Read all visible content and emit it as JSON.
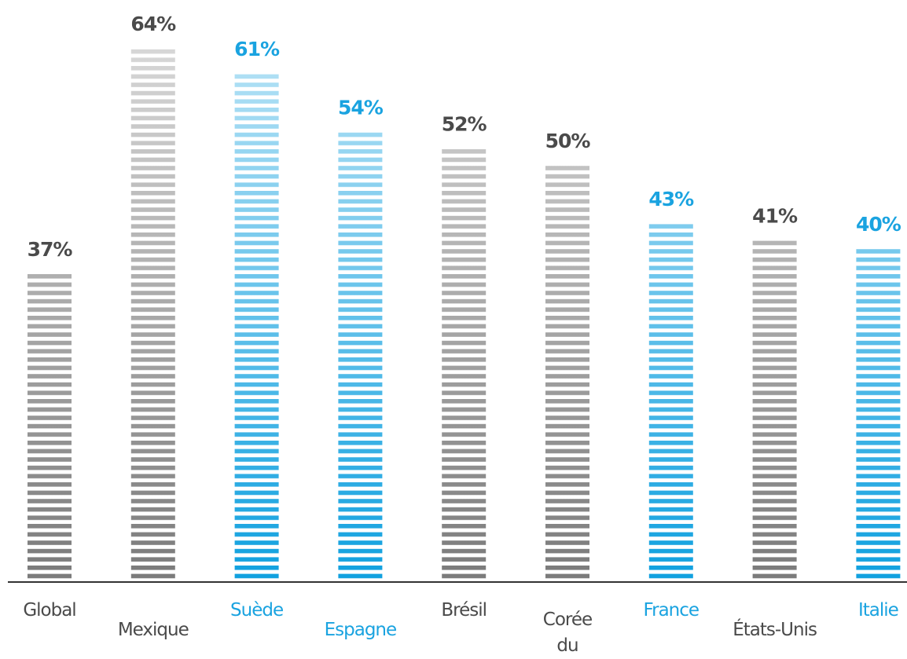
{
  "chart_data": {
    "type": "bar",
    "categories": [
      "Global",
      "Mexique",
      "Suède",
      "Espagne",
      "Brésil",
      "Corée du Sud",
      "France",
      "États-Unis",
      "Italie"
    ],
    "values": [
      37,
      64,
      61,
      54,
      52,
      50,
      43,
      41,
      40
    ],
    "value_labels": [
      "37%",
      "64%",
      "61%",
      "54%",
      "52%",
      "50%",
      "43%",
      "41%",
      "40%"
    ],
    "colors": [
      "#7a7a7a",
      "#7a7a7a",
      "#0fa0df",
      "#0fa0df",
      "#7a7a7a",
      "#7a7a7a",
      "#0fa0df",
      "#7a7a7a",
      "#0fa0df"
    ],
    "label_colors": [
      "#4a4a4a",
      "#4a4a4a",
      "#1aa3e0",
      "#1aa3e0",
      "#4a4a4a",
      "#4a4a4a",
      "#1aa3e0",
      "#4a4a4a",
      "#1aa3e0"
    ]
  }
}
